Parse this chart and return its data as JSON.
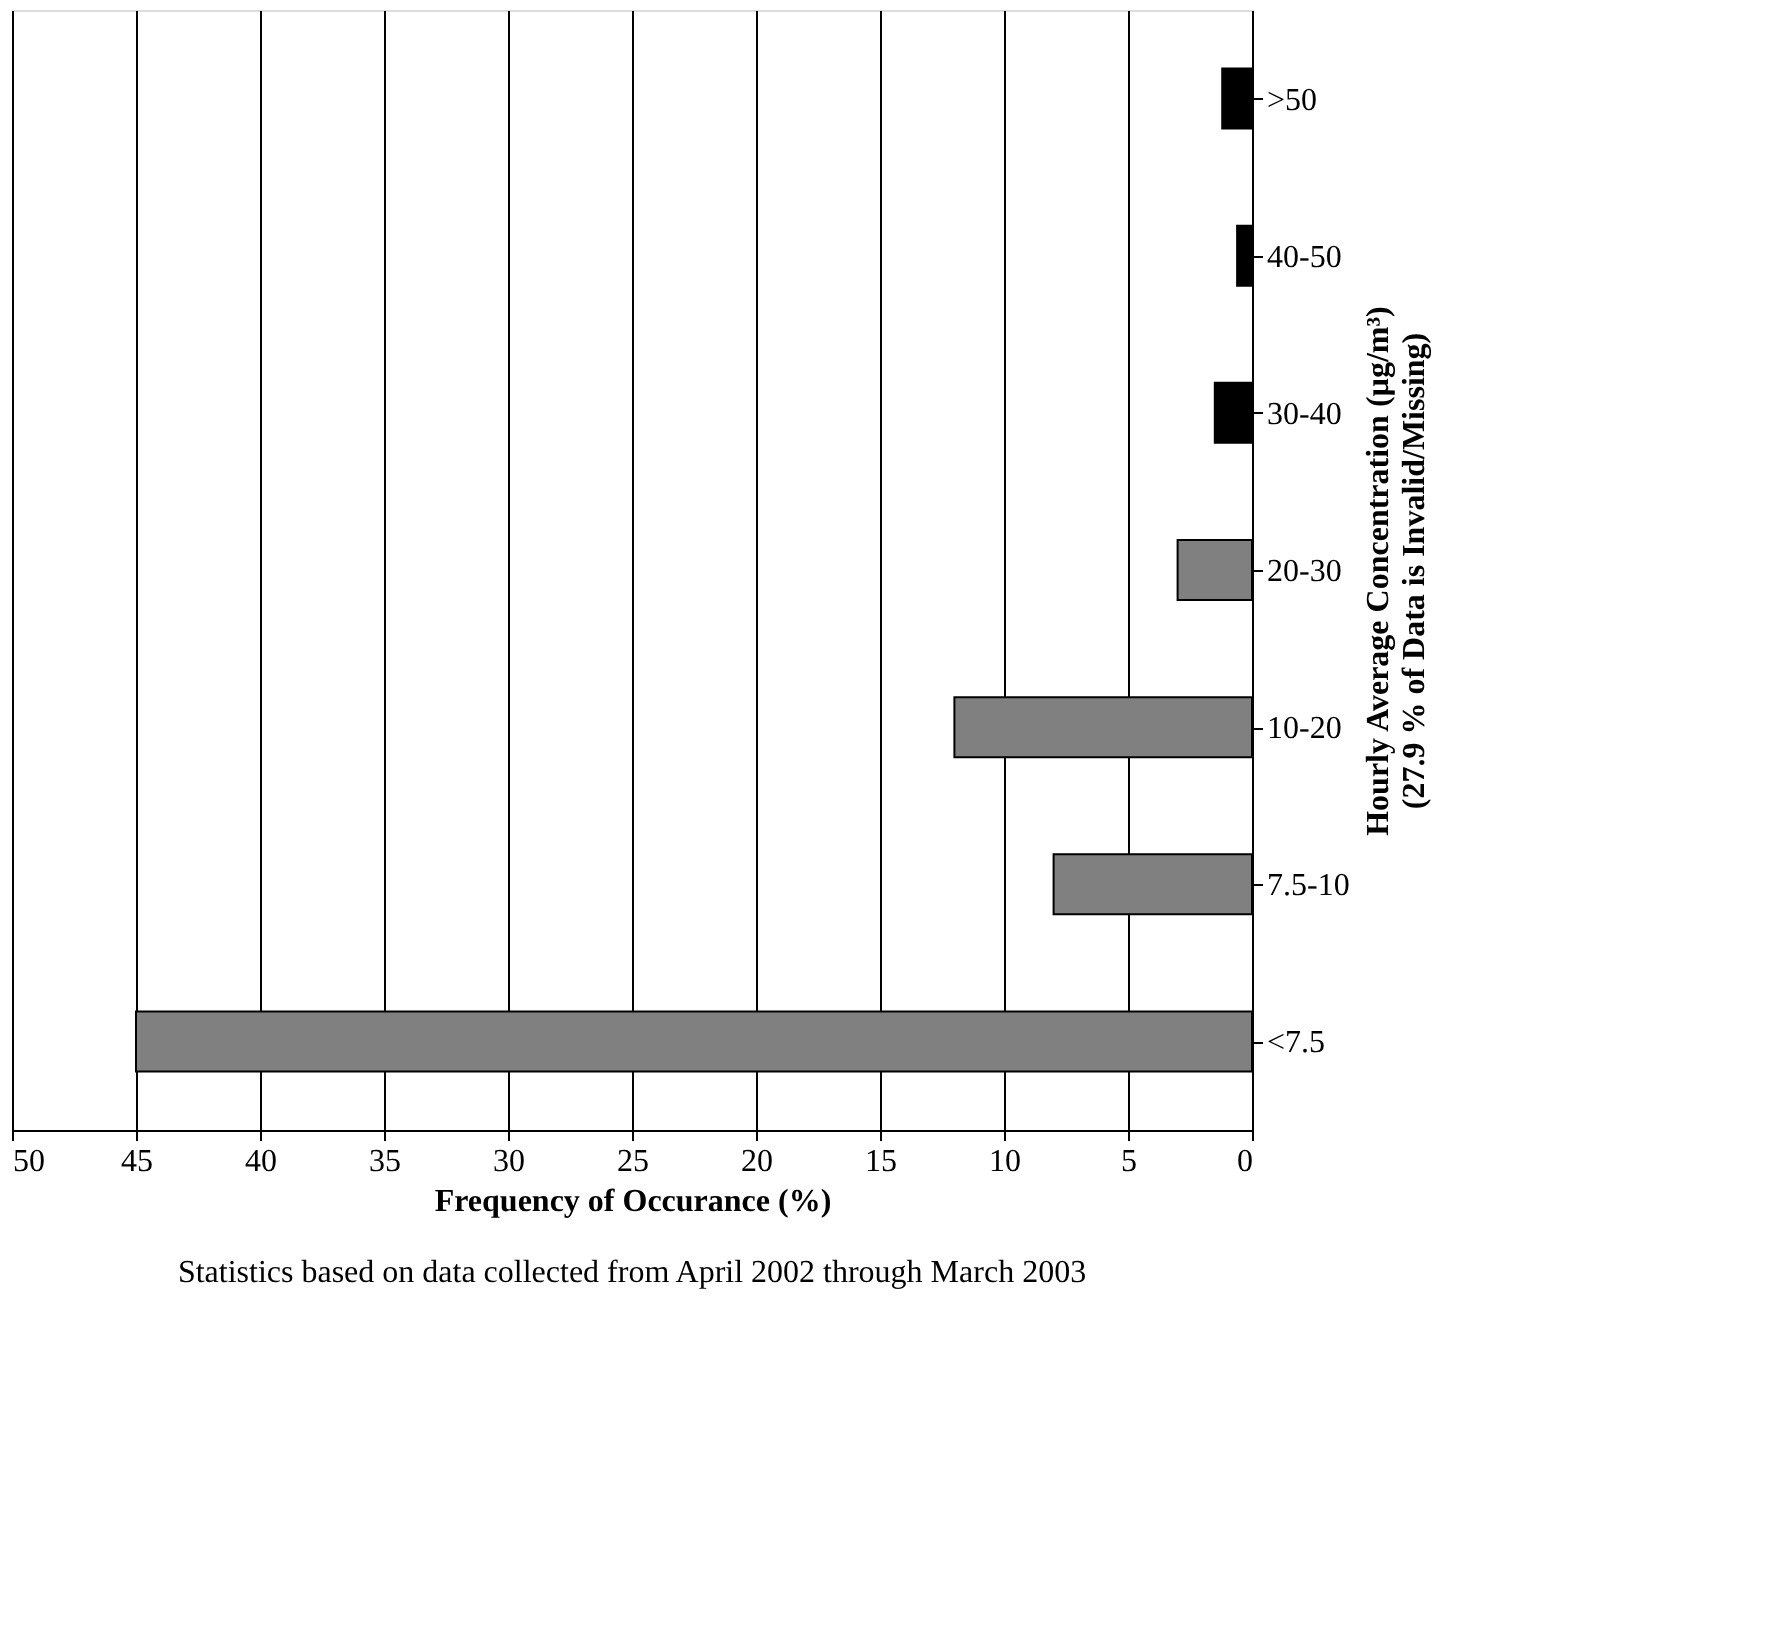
{
  "chart_data": {
    "type": "bar",
    "orientation": "horizontal",
    "categories": [
      ">50",
      "40-50",
      "30-40",
      "20-30",
      "10-20",
      "7.5-10",
      "<7.5"
    ],
    "values": [
      1.2,
      0.6,
      1.5,
      3,
      12,
      8,
      45
    ],
    "colors": [
      "#000000",
      "#000000",
      "#000000",
      "#808080",
      "#808080",
      "#808080",
      "#808080"
    ],
    "xlim": [
      50,
      0
    ],
    "xticks": [
      50,
      45,
      40,
      35,
      30,
      25,
      20,
      15,
      10,
      5,
      0
    ],
    "xlabel": "Frequency of Occurance (%)",
    "ylabel": "Hourly Average Concentration (µg/m³)\n(27.9 % of Data is Invalid/Missing)",
    "annotations": [
      "Statistics based on data collected from April 2002 through March 2003"
    ],
    "grid": "x"
  }
}
